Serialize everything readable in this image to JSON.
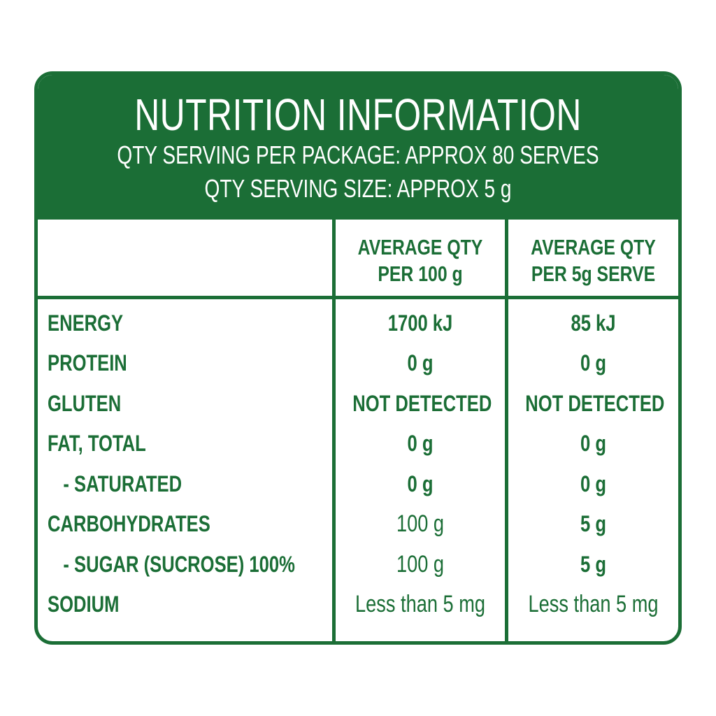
{
  "header": {
    "title": "NUTRITION INFORMATION",
    "servings_per_package": "QTY SERVING PER PACKAGE: APPROX 80 SERVES",
    "serving_size": "QTY SERVING SIZE: APPROX 5 g"
  },
  "columns": {
    "per100_line1": "AVERAGE QTY",
    "per100_line2": "PER 100 g",
    "perserve_line1": "AVERAGE QTY",
    "perserve_line2": "PER 5g SERVE"
  },
  "rows": [
    {
      "label": "ENERGY",
      "per100": "1700 kJ",
      "perserve": "85 kJ"
    },
    {
      "label": "PROTEIN",
      "per100": "0 g",
      "perserve": "0 g"
    },
    {
      "label": "GLUTEN",
      "per100": "NOT DETECTED",
      "perserve": "NOT DETECTED"
    },
    {
      "label": "FAT, TOTAL",
      "per100": "0 g",
      "perserve": "0 g"
    },
    {
      "label": "- SATURATED",
      "per100": "0 g",
      "perserve": "0 g"
    },
    {
      "label": "CARBOHYDRATES",
      "per100": "100 g",
      "perserve": "5 g"
    },
    {
      "label": "- SUGAR (SUCROSE) 100%",
      "per100": "100 g",
      "perserve": "5 g"
    },
    {
      "label": "SODIUM",
      "per100": "Less than 5 mg",
      "perserve": "Less than 5 mg"
    }
  ],
  "colors": {
    "brand_green": "#1b6e36",
    "background": "#ffffff"
  }
}
